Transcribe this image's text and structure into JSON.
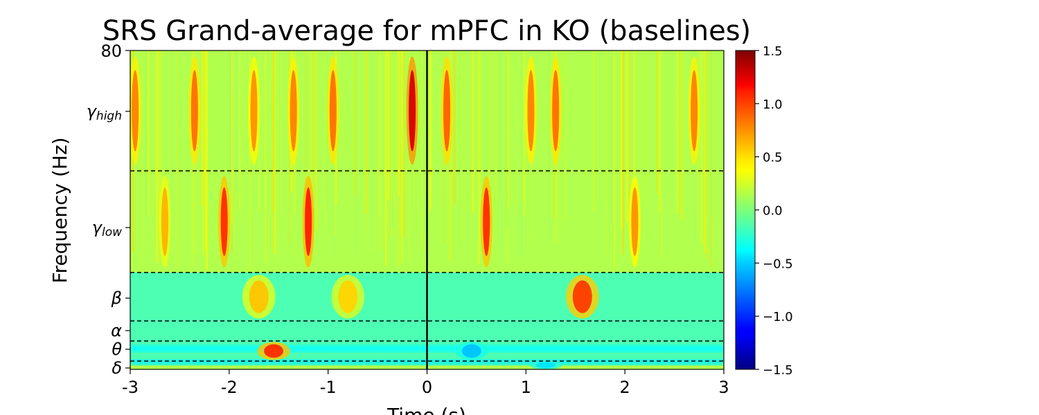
{
  "chart_data": {
    "type": "heatmap",
    "title": "SRS Grand-average for mPFC in KO (baselines)",
    "xlabel": "Time (s)",
    "ylabel": "Frequency (Hz)",
    "xlim": [
      -3,
      3
    ],
    "x_ticks": [
      -3,
      -2,
      -1,
      0,
      1,
      2,
      3
    ],
    "x_tick_labels": [
      "-3",
      "-2",
      "-1",
      "0",
      "1",
      "2",
      "3"
    ],
    "y_top_tick_label": "80",
    "band_labels": [
      {
        "base": "γ",
        "sub": "high"
      },
      {
        "base": "γ",
        "sub": "low"
      },
      {
        "base": "β",
        "sub": ""
      },
      {
        "base": "α",
        "sub": ""
      },
      {
        "base": "θ",
        "sub": ""
      },
      {
        "base": "δ",
        "sub": ""
      }
    ],
    "event_marker_x": 0,
    "colorbar": {
      "colormap": "jet",
      "range": [
        -1.5,
        1.5
      ],
      "ticks": [
        1.5,
        1.0,
        0.5,
        0.0,
        -0.5,
        -1.0,
        -1.5
      ],
      "tick_labels": [
        "1.5",
        "1.0",
        "0.5",
        "0.0",
        "−0.5",
        "−1.0",
        "−1.5"
      ]
    },
    "background_value": 0.15,
    "highlights": [
      {
        "t": -2.95,
        "band": "gamma_high",
        "value": 0.75
      },
      {
        "t": -2.65,
        "band": "gamma_low",
        "value": 0.6
      },
      {
        "t": -2.35,
        "band": "gamma_high",
        "value": 0.8
      },
      {
        "t": -2.05,
        "band": "gamma_low",
        "value": 1.0
      },
      {
        "t": -1.75,
        "band": "gamma_high",
        "value": 0.7
      },
      {
        "t": -1.7,
        "band": "beta",
        "value": 0.55
      },
      {
        "t": -1.55,
        "band": "theta",
        "value": 1.0
      },
      {
        "t": -1.35,
        "band": "gamma_high",
        "value": 0.75
      },
      {
        "t": -1.2,
        "band": "gamma_low",
        "value": 1.05
      },
      {
        "t": -0.95,
        "band": "gamma_high",
        "value": 0.8
      },
      {
        "t": -0.8,
        "band": "beta",
        "value": 0.5
      },
      {
        "t": -0.15,
        "band": "gamma_high",
        "value": 1.25
      },
      {
        "t": 0.2,
        "band": "gamma_high",
        "value": 0.85
      },
      {
        "t": 0.6,
        "band": "gamma_low",
        "value": 1.0
      },
      {
        "t": 1.05,
        "band": "gamma_high",
        "value": 0.75
      },
      {
        "t": 1.3,
        "band": "gamma_high",
        "value": 0.8
      },
      {
        "t": 1.57,
        "band": "beta",
        "value": 0.95
      },
      {
        "t": 2.1,
        "band": "gamma_low",
        "value": 0.7
      },
      {
        "t": 2.7,
        "band": "gamma_high",
        "value": 0.75
      },
      {
        "t": 0.45,
        "band": "theta",
        "value": -0.55
      },
      {
        "t": 1.2,
        "band": "delta",
        "value": -0.45
      }
    ]
  }
}
